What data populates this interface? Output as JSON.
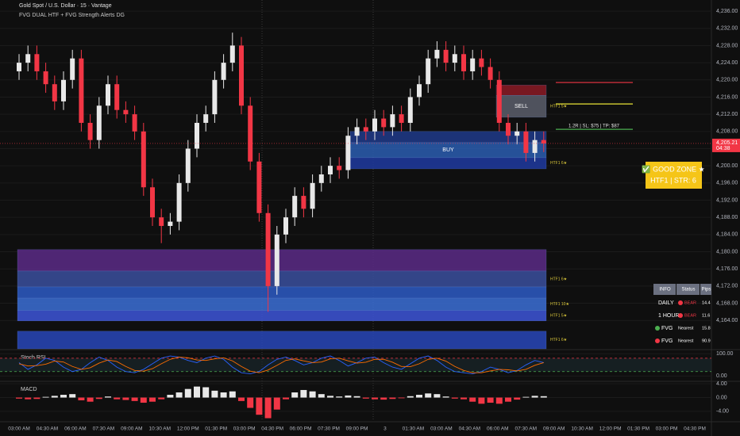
{
  "header": {
    "symbol": "Gold Spot / U.S. Dollar · 15 · Vantage",
    "indicator": "FVG DUAL HTF + FVG Strength Alerts DG"
  },
  "chart_data": [
    {
      "type": "candlestick",
      "open": [
        4222,
        4224,
        4226,
        4222,
        4219,
        4215,
        4220,
        4225,
        4210,
        4206,
        4214,
        4219,
        4213,
        4212,
        4208,
        4195,
        4188,
        4186,
        4187,
        4196,
        4204,
        4210,
        4212,
        4220,
        4224,
        4228,
        4214,
        4201,
        4189,
        4172,
        4184,
        4188,
        4193,
        4190,
        4196,
        4198,
        4200,
        4199,
        4207,
        4209,
        4208,
        4211,
        4209,
        4212,
        4210,
        4216,
        4219,
        4225,
        4227,
        4224,
        4226,
        4222,
        4225,
        4223,
        4220,
        4210,
        4207,
        4208,
        4203,
        4206
      ],
      "high": [
        4226,
        4228,
        4228,
        4224,
        4221,
        4222,
        4227,
        4227,
        4212,
        4216,
        4221,
        4221,
        4215,
        4214,
        4210,
        4197,
        4190,
        4189,
        4198,
        4206,
        4212,
        4214,
        4222,
        4226,
        4231,
        4230,
        4216,
        4203,
        4191,
        4186,
        4190,
        4195,
        4195,
        4198,
        4200,
        4202,
        4202,
        4209,
        4211,
        4211,
        4213,
        4213,
        4214,
        4214,
        4218,
        4221,
        4227,
        4229,
        4229,
        4228,
        4228,
        4227,
        4227,
        4225,
        4222,
        4212,
        4210,
        4210,
        4208,
        4208
      ],
      "low": [
        4220,
        4222,
        4220,
        4217,
        4213,
        4213,
        4218,
        4208,
        4204,
        4204,
        4212,
        4211,
        4210,
        4206,
        4193,
        4186,
        4182,
        4184,
        4185,
        4194,
        4202,
        4208,
        4210,
        4218,
        4222,
        4212,
        4199,
        4187,
        4166,
        4170,
        4182,
        4186,
        4188,
        4188,
        4194,
        4196,
        4197,
        4197,
        4205,
        4206,
        4206,
        4207,
        4207,
        4208,
        4208,
        4214,
        4217,
        4223,
        4222,
        4222,
        4220,
        4220,
        4221,
        4218,
        4208,
        4205,
        4205,
        4201,
        4201,
        4203.2
      ],
      "close": [
        4224,
        4226,
        4222,
        4219,
        4215,
        4220,
        4225,
        4210,
        4206,
        4214,
        4219,
        4213,
        4212,
        4208,
        4195,
        4188,
        4186,
        4187,
        4196,
        4204,
        4210,
        4212,
        4220,
        4224,
        4228,
        4214,
        4201,
        4189,
        4172,
        4184,
        4188,
        4193,
        4190,
        4196,
        4198,
        4200,
        4199,
        4207,
        4209,
        4208,
        4211,
        4209,
        4212,
        4210,
        4216,
        4219,
        4225,
        4227,
        4224,
        4226,
        4222,
        4225,
        4223,
        4220,
        4210,
        4207,
        4208,
        4203,
        4206,
        4205.21
      ],
      "up_color": "#e8e8e8",
      "down_color": "#f23645",
      "ylim": [
        4157.4,
        4238.6
      ],
      "yticks": [
        {
          "value": 4164,
          "label": "4,164.00"
        },
        {
          "value": 4168,
          "label": "4,168.00"
        },
        {
          "value": 4172,
          "label": "4,172.00"
        },
        {
          "value": 4176,
          "label": "4,176.00"
        },
        {
          "value": 4180,
          "label": "4,180.00"
        },
        {
          "value": 4184,
          "label": "4,184.00"
        },
        {
          "value": 4188,
          "label": "4,188.00"
        },
        {
          "value": 4192,
          "label": "4,192.00"
        },
        {
          "value": 4196,
          "label": "4,196.00"
        },
        {
          "value": 4200,
          "label": "4,200.00"
        },
        {
          "value": 4204,
          "label": "4,204.00"
        },
        {
          "value": 4208,
          "label": "4,208.00"
        },
        {
          "value": 4212,
          "label": "4,212.00"
        },
        {
          "value": 4216,
          "label": "4,216.00"
        },
        {
          "value": 4220,
          "label": "4,220.00"
        },
        {
          "value": 4224,
          "label": "4,224.00"
        },
        {
          "value": 4228,
          "label": "4,228.00"
        },
        {
          "value": 4232,
          "label": "4,232.00"
        },
        {
          "value": 4236,
          "label": "4,236.00"
        }
      ],
      "last_price": {
        "value": 4205.21,
        "label": "4,205.21"
      },
      "countdown": "04:38",
      "zones": [
        {
          "from": 4216.4,
          "to": 4218.8,
          "color": "#8b1a24"
        },
        {
          "from": 4211.3,
          "to": 4216.4,
          "color": "#5a5e6b",
          "label": "SELL",
          "tag": "HTF1 5★"
        },
        {
          "from": 4205.4,
          "to": 4208.0,
          "color": "#1e3a8a"
        },
        {
          "from": 4201.9,
          "to": 4205.4,
          "color": "#2a5db0",
          "label": "BUY"
        },
        {
          "from": 4199.3,
          "to": 4201.9,
          "color": "#1e3aa0",
          "tag": "HTF1 6★"
        },
        {
          "from": 4175.5,
          "to": 4180.5,
          "color": "#5b2a86"
        },
        {
          "from": 4171.8,
          "to": 4175.5,
          "color": "#3a4f9e",
          "tag": "HTF1 6★"
        },
        {
          "from": 4169.2,
          "to": 4171.8,
          "color": "#2d5bc4"
        },
        {
          "from": 4166.3,
          "to": 4169.2,
          "color": "#3b6fd6",
          "tag": "HTF1 10★"
        },
        {
          "from": 4163.9,
          "to": 4166.3,
          "color": "#3d55d8",
          "tag": "HTF1 5★"
        },
        {
          "from": 4157.4,
          "to": 4161.5,
          "color": "#2847b8",
          "tag": "HTF1 6★"
        }
      ],
      "levels": [
        {
          "value": 4219.4,
          "color": "#f23645"
        },
        {
          "value": 4214.4,
          "color": "#e8e337"
        },
        {
          "value": 4208.5,
          "color": "#4caf50",
          "label": "1.2R | SL: $75 | TP: $87"
        }
      ]
    },
    {
      "type": "line",
      "title": "Stoch RSI",
      "series": [
        {
          "color": "#2962ff",
          "values": [
            60,
            30,
            50,
            80,
            70,
            40,
            20,
            30,
            60,
            85,
            70,
            40,
            20,
            15,
            30,
            55,
            80,
            90,
            85,
            70,
            60,
            80,
            90,
            75,
            40,
            15,
            10,
            20,
            50,
            75,
            85,
            70,
            50,
            60,
            80,
            90,
            70,
            45,
            60,
            80,
            85,
            60,
            40,
            30,
            55,
            80,
            90,
            70,
            40,
            20,
            15,
            10,
            20,
            40,
            30,
            15,
            25,
            50,
            70,
            60
          ]
        },
        {
          "color": "#ff6d00",
          "values": [
            55,
            45,
            47,
            53,
            67,
            63,
            43,
            30,
            37,
            58,
            72,
            65,
            43,
            25,
            22,
            33,
            55,
            75,
            85,
            82,
            72,
            70,
            77,
            82,
            68,
            43,
            22,
            15,
            27,
            48,
            70,
            77,
            68,
            60,
            63,
            77,
            80,
            68,
            58,
            62,
            75,
            75,
            62,
            43,
            42,
            55,
            75,
            80,
            67,
            43,
            25,
            15,
            15,
            23,
            30,
            28,
            23,
            30,
            48,
            60
          ]
        }
      ],
      "levels": [
        {
          "value": 80,
          "color": "#f23645"
        },
        {
          "value": 20,
          "color": "#4caf50"
        }
      ],
      "ylim": [
        -20,
        115
      ],
      "yticks": [
        {
          "value": 100,
          "label": "100.00"
        },
        {
          "value": 0,
          "label": "0.00"
        }
      ]
    },
    {
      "type": "bar",
      "title": "MACD",
      "values": [
        -0.3,
        -0.5,
        -0.4,
        0.2,
        0.5,
        0.8,
        1.0,
        -0.8,
        -1.2,
        -0.4,
        0.3,
        -0.5,
        -0.7,
        -1.0,
        -1.5,
        -1.2,
        -0.5,
        0.8,
        1.5,
        2.5,
        3.2,
        3.0,
        2.0,
        1.5,
        1.8,
        -1.0,
        -3.0,
        -5.0,
        -6.0,
        -3.5,
        -0.5,
        1.5,
        2.2,
        1.8,
        1.0,
        0.5,
        0.3,
        0.6,
        0.4,
        -0.3,
        -0.5,
        -0.6,
        -0.4,
        -0.2,
        0.4,
        0.8,
        1.2,
        1.0,
        0.3,
        -0.3,
        -0.5,
        -1.2,
        -1.8,
        -1.5,
        -1.8,
        -1.2,
        -0.6,
        0.2,
        0.5,
        0.4
      ],
      "pos_color": "#e8e8e8",
      "neg_color": "#f23645",
      "ylim": [
        -6.8,
        4.5
      ],
      "yticks": [
        {
          "value": 4,
          "label": "4.00"
        },
        {
          "value": 0,
          "label": "0.00"
        },
        {
          "value": -4,
          "label": "-4.00"
        }
      ]
    }
  ],
  "time_labels": [
    "03:00 AM",
    "04:30 AM",
    "06:00 AM",
    "07:30 AM",
    "09:00 AM",
    "10:30 AM",
    "12:00 PM",
    "01:30 PM",
    "03:00 PM",
    "04:30 PM",
    "06:00 PM",
    "07:30 PM",
    "09:00 PM",
    "3",
    "01:30 AM",
    "03:00 AM",
    "04:30 AM",
    "06:00 AM",
    "07:30 AM",
    "09:00 AM",
    "10:30 AM",
    "12:00 PM",
    "01:30 PM",
    "03:00 PM",
    "04:30 PM"
  ],
  "signal": {
    "text": "✅ GOOD ZONE ★",
    "detail": "HTF1 | STR: 6"
  },
  "info_table": {
    "headers": [
      "INFO",
      "Status",
      "Pips"
    ],
    "rows": [
      [
        "DAILY",
        "BEAR",
        14.4
      ],
      [
        "1 HOUR",
        "BEAR",
        11.6
      ],
      [
        "FVG",
        "Nearest",
        15.8
      ],
      [
        "FVG",
        "Nearest",
        90.9
      ]
    ],
    "dots": [
      "#f23645",
      "#f23645",
      "#4caf50",
      "#f23645"
    ]
  }
}
